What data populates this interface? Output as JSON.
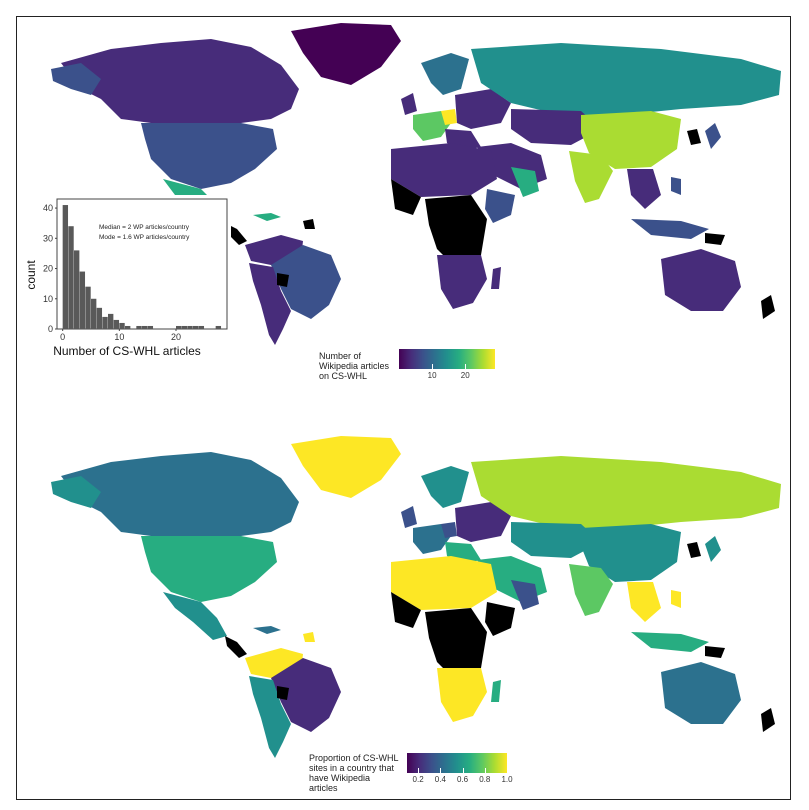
{
  "colors": {
    "viridis": [
      "#440154",
      "#472c7a",
      "#3b518b",
      "#2c718e",
      "#21908d",
      "#27ad81",
      "#5cc863",
      "#aadc32",
      "#fde725"
    ],
    "missing": "#000000",
    "ocean": "#ffffff",
    "histogram_bar": "#595959"
  },
  "top_map": {
    "legend": {
      "title": "Number of\nWikipedia articles\non CS-WHL",
      "ticks": [
        "10",
        "20"
      ],
      "tick_values": [
        10,
        20
      ],
      "range": [
        0,
        29
      ]
    }
  },
  "bottom_map": {
    "legend": {
      "title": "Proportion of CS-WHL\nsites in a country that\nhave Wikipedia\narticles",
      "ticks": [
        "0.2",
        "0.4",
        "0.6",
        "0.8",
        "1.0"
      ],
      "tick_values": [
        0.2,
        0.4,
        0.6,
        0.8,
        1.0
      ],
      "range": [
        0.1,
        1.0
      ]
    }
  },
  "chart_data": {
    "type": "bar",
    "xlabel": "Number of CS-WHL articles",
    "ylabel": "count",
    "annotations": [
      "Median = 2 WP articles/country",
      "Mode = 1.6 WP articles/country"
    ],
    "x_ticks": [
      "0",
      "10",
      "20"
    ],
    "x_tick_values": [
      0,
      10,
      20
    ],
    "y_ticks": [
      "0",
      "10",
      "20",
      "30",
      "40"
    ],
    "y_tick_values": [
      0,
      10,
      20,
      30,
      40
    ],
    "xlim": [
      -1,
      29
    ],
    "ylim": [
      0,
      43
    ],
    "bin_width": 1,
    "bin_starts": [
      0,
      1,
      2,
      3,
      4,
      5,
      6,
      7,
      8,
      9,
      10,
      11,
      12,
      13,
      14,
      15,
      16,
      17,
      18,
      19,
      20,
      21,
      22,
      23,
      24,
      25,
      26,
      27
    ],
    "values": [
      41,
      34,
      26,
      19,
      14,
      10,
      7,
      4,
      5,
      3,
      2,
      1,
      0,
      1,
      1,
      1,
      0,
      0,
      0,
      0,
      1,
      1,
      1,
      1,
      1,
      0,
      0,
      1
    ]
  }
}
